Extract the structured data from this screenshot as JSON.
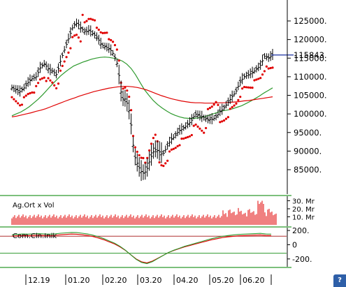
{
  "chart_data": [
    {
      "type": "ohlc",
      "panel": "price",
      "y_ticks": [
        "125000.",
        "120000.",
        "115000.",
        "110000.",
        "105000.",
        "100000.",
        "95000.",
        "90000.",
        "85000."
      ],
      "y_tick_values": [
        125000,
        120000,
        115000,
        110000,
        105000,
        100000,
        95000,
        90000,
        85000
      ],
      "ylim": [
        80000,
        132000
      ],
      "last_value_label": "115843.",
      "last_value": 115843,
      "close_series": [
        107000,
        106500,
        106000,
        107000,
        108500,
        109500,
        110000,
        112500,
        113500,
        112000,
        111500,
        110500,
        114500,
        117500,
        120500,
        123500,
        124500,
        123000,
        122000,
        122500,
        121500,
        120500,
        118500,
        118000,
        117500,
        116000,
        113000,
        104000,
        104000,
        100000,
        89000,
        86000,
        84000,
        84500,
        88000,
        90500,
        90000,
        89000,
        91000,
        93000,
        94000,
        95500,
        96000,
        97000,
        98000,
        100000,
        99500,
        99000,
        98500,
        98500,
        99000,
        100500,
        101500,
        103000,
        104500,
        106000,
        108500,
        110000,
        110500,
        111000,
        112000,
        113000,
        115500,
        115000,
        115843
      ],
      "series": [
        {
          "name": "sar",
          "color": "#e00000"
        },
        {
          "name": "ma-green",
          "color": "#2e9a2e",
          "values": [
            99500,
            100000,
            100500,
            101200,
            102000,
            103000,
            104000,
            105200,
            106500,
            107800,
            109000,
            110200,
            111200,
            112100,
            112900,
            113400,
            113900,
            114300,
            114700,
            115000,
            115200,
            115300,
            115200,
            115000,
            114700,
            114200,
            113400,
            112200,
            110500,
            108500,
            106500,
            105000,
            103600,
            102500,
            101600,
            100800,
            100100,
            99600,
            99200,
            98900,
            98800,
            98800,
            98900,
            99100,
            99400,
            99800,
            100200,
            100600,
            100900,
            101100,
            101400,
            101800,
            102200,
            102800,
            103400,
            104100,
            104800,
            105600,
            106300,
            107000
          ]
        },
        {
          "name": "ma-red",
          "color": "#e00000",
          "values": [
            99200,
            99400,
            99700,
            100000,
            100300,
            100700,
            101000,
            101400,
            101900,
            102400,
            102900,
            103400,
            103900,
            104300,
            104800,
            105200,
            105600,
            106000,
            106300,
            106600,
            106900,
            107100,
            107300,
            107400,
            107400,
            107300,
            107100,
            106800,
            106400,
            105900,
            105400,
            104900,
            104500,
            104100,
            103800,
            103500,
            103300,
            103100,
            103000,
            103000,
            102900,
            102900,
            102900,
            103000,
            103000,
            103100,
            103200,
            103300,
            103500,
            103600,
            103800,
            104000,
            104200,
            104400,
            104600
          ]
        }
      ]
    },
    {
      "type": "bar",
      "panel": "volume",
      "title": "Ag.Ort x Vol",
      "y_ticks": [
        "30. Mr",
        "20. Mr",
        "10. Mr"
      ],
      "y_tick_values": [
        30,
        20,
        10
      ],
      "ylim": [
        0,
        33
      ],
      "color": "#e00000"
    },
    {
      "type": "line",
      "panel": "oscillator",
      "title": "Com.Cln.Inik",
      "y_ticks": [
        "200.",
        "0",
        "-200."
      ],
      "y_tick_values": [
        200,
        0,
        -200
      ],
      "ylim": [
        -300,
        230
      ],
      "reference_lines": [
        {
          "value": 120,
          "color": "#b03030"
        },
        {
          "value": -120,
          "color": "#2e9a2e"
        }
      ],
      "series": [
        {
          "name": "osc-red",
          "color": "#e00000"
        },
        {
          "name": "osc-green",
          "color": "#2e9a2e"
        }
      ]
    }
  ],
  "x_axis": {
    "tick_labels": [
      "12.19",
      "01.20",
      "02.20",
      "03.20",
      "04.20",
      "05.20",
      "06.20"
    ]
  },
  "corner_icon": {
    "name": "help-icon",
    "glyph": "?"
  }
}
